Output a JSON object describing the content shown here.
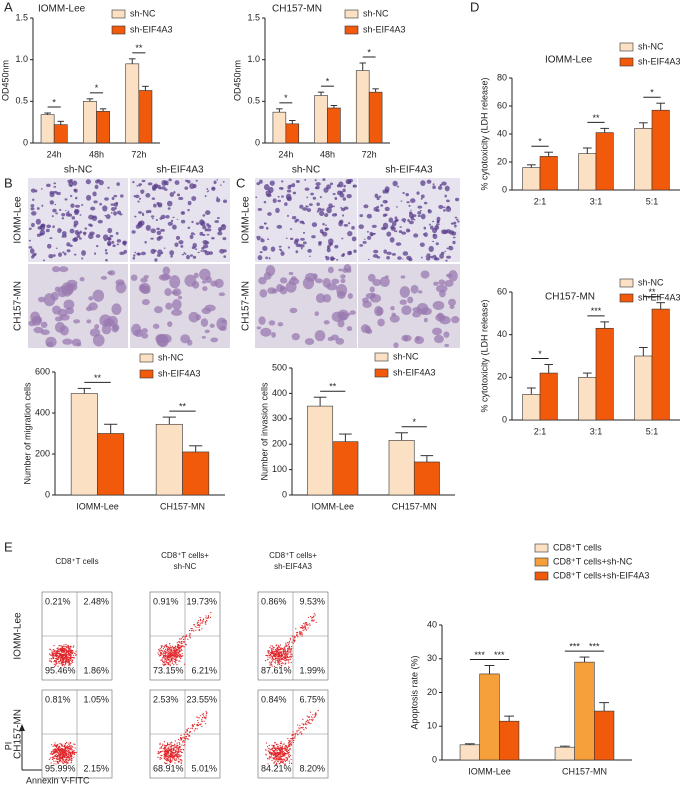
{
  "panels": [
    "A",
    "B",
    "C",
    "D",
    "E"
  ],
  "chart_data": [
    {
      "type": "bar",
      "title": "IOMM-Lee",
      "ylabel": "OD450nm",
      "categories": [
        "24h",
        "48h",
        "72h"
      ],
      "series": [
        {
          "name": "sh-NC",
          "color": "#fbe0c4",
          "values": [
            0.34,
            0.5,
            0.95
          ],
          "errors": [
            0.02,
            0.03,
            0.06
          ]
        },
        {
          "name": "sh-EIF4A3",
          "color": "#f25a0b",
          "values": [
            0.22,
            0.38,
            0.63
          ],
          "errors": [
            0.04,
            0.03,
            0.05
          ]
        }
      ],
      "ylim": [
        0,
        1.5
      ],
      "yticks": [
        0,
        0.5,
        {
          "value": 1,
          "label": "1.0"
        },
        1.5
      ],
      "annotations": [
        "*",
        "*",
        "**"
      ]
    },
    {
      "type": "bar",
      "title": "CH157-MN",
      "ylabel": "OD450nm",
      "categories": [
        "24h",
        "48h",
        "72h"
      ],
      "series": [
        {
          "name": "sh-NC",
          "color": "#fbe0c4",
          "values": [
            0.37,
            0.57,
            0.87
          ],
          "errors": [
            0.04,
            0.04,
            0.09
          ]
        },
        {
          "name": "sh-EIF4A3",
          "color": "#f25a0b",
          "values": [
            0.23,
            0.42,
            0.61
          ],
          "errors": [
            0.04,
            0.03,
            0.04
          ]
        }
      ],
      "ylim": [
        0,
        1.5
      ],
      "yticks": [
        0,
        0.5,
        {
          "value": 1,
          "label": "1.0"
        },
        1.5
      ],
      "annotations": [
        "*",
        "*",
        "*"
      ]
    },
    {
      "type": "bar",
      "ylabel": "Number of migration cells",
      "categories": [
        "IOMM-Lee",
        "CH157-MN"
      ],
      "series": [
        {
          "name": "sh-NC",
          "color": "#fbe0c4",
          "values": [
            495,
            345
          ],
          "errors": [
            25,
            35
          ]
        },
        {
          "name": "sh-EIF4A3",
          "color": "#f25a0b",
          "values": [
            300,
            210
          ],
          "errors": [
            45,
            30
          ]
        }
      ],
      "ylim": [
        0,
        600
      ],
      "yticks": [
        0,
        200,
        400,
        600
      ],
      "annotations": [
        "**",
        "**"
      ]
    },
    {
      "type": "bar",
      "ylabel": "Number of invasion cells",
      "categories": [
        "IOMM-Lee",
        "CH157-MN"
      ],
      "series": [
        {
          "name": "sh-NC",
          "color": "#fbe0c4",
          "values": [
            350,
            215
          ],
          "errors": [
            35,
            30
          ]
        },
        {
          "name": "sh-EIF4A3",
          "color": "#f25a0b",
          "values": [
            210,
            130
          ],
          "errors": [
            30,
            25
          ]
        }
      ],
      "ylim": [
        0,
        500
      ],
      "yticks": [
        0,
        100,
        200,
        300,
        400,
        500
      ],
      "annotations": [
        "**",
        "*"
      ]
    },
    {
      "type": "bar",
      "title": "IOMM-Lee",
      "ylabel": "% cytotoxicity (LDH release)",
      "categories": [
        "2:1",
        "3:1",
        "5:1"
      ],
      "series": [
        {
          "name": "sh-NC",
          "color": "#fbe0c4",
          "values": [
            16,
            26,
            44
          ],
          "errors": [
            2,
            4,
            4
          ]
        },
        {
          "name": "sh-EIF4A3",
          "color": "#f25a0b",
          "values": [
            24,
            41,
            57
          ],
          "errors": [
            3,
            3,
            5
          ]
        }
      ],
      "ylim": [
        0,
        80
      ],
      "yticks": [
        0,
        20,
        40,
        60,
        80
      ],
      "annotations": [
        "*",
        "**",
        "*"
      ]
    },
    {
      "type": "bar",
      "title": "CH157-MN",
      "ylabel": "% cytotoxicity (LDH release)",
      "categories": [
        "2:1",
        "3:1",
        "5:1"
      ],
      "series": [
        {
          "name": "sh-NC",
          "color": "#fbe0c4",
          "values": [
            12,
            20,
            30
          ],
          "errors": [
            3,
            2,
            4
          ]
        },
        {
          "name": "sh-EIF4A3",
          "color": "#f25a0b",
          "values": [
            22,
            43,
            52
          ],
          "errors": [
            4,
            3,
            3
          ]
        }
      ],
      "ylim": [
        0,
        60
      ],
      "yticks": [
        0,
        20,
        40,
        60
      ],
      "annotations": [
        "*",
        "***",
        "**"
      ]
    },
    {
      "type": "bar",
      "ylabel": "Apoptosis rate (%)",
      "categories": [
        "IOMM-Lee",
        "CH157-MN"
      ],
      "series": [
        {
          "name": "CD8⁺T cells",
          "color": "#fbe0c4",
          "values": [
            4.5,
            3.8
          ],
          "errors": [
            0.3,
            0.3
          ]
        },
        {
          "name": "CD8⁺T cells+sh-NC",
          "color": "#f5a03a",
          "values": [
            25.5,
            29
          ],
          "errors": [
            2.5,
            1.5
          ]
        },
        {
          "name": "CD8⁺T cells+sh-EIF4A3",
          "color": "#f25a0b",
          "values": [
            11.5,
            14.5
          ],
          "errors": [
            1.5,
            2.5
          ]
        }
      ],
      "ylim": [
        0,
        40
      ],
      "yticks": [
        0,
        10,
        20,
        30,
        40
      ],
      "annotations": [
        [
          "***",
          "***"
        ],
        [
          "***",
          "***"
        ]
      ]
    }
  ],
  "images": [
    {
      "columns": [
        "sh-NC",
        "sh-EIF4A3"
      ],
      "rows": [
        "IOMM-Lee",
        "CH157-MN"
      ]
    },
    {
      "columns": [
        "sh-NC",
        "sh-EIF4A3"
      ],
      "rows": [
        "IOMM-Lee",
        "CH157-MN"
      ]
    }
  ],
  "flow": {
    "columns": [
      [
        "CD8⁺T cells"
      ],
      [
        "CD8⁺T cells+",
        "sh-NC"
      ],
      [
        "CD8⁺T cells+",
        "sh-EIF4A3"
      ]
    ],
    "rows": [
      "IOMM-Lee",
      "CH157-MN"
    ],
    "quadrants": [
      [
        [
          "0.21%",
          "2.48%",
          "95.46%",
          "1.86%"
        ],
        [
          "0.91%",
          "19.73%",
          "73.15%",
          "6.21%"
        ],
        [
          "0.86%",
          "9.53%",
          "87.61%",
          "1.99%"
        ]
      ],
      [
        [
          "0.81%",
          "1.05%",
          "95.99%",
          "2.15%"
        ],
        [
          "2.53%",
          "23.55%",
          "68.91%",
          "5.01%"
        ],
        [
          "0.84%",
          "6.75%",
          "84.21%",
          "8.20%"
        ]
      ]
    ],
    "y_label": "PI",
    "x_label": "Annexin V-FITC"
  }
}
